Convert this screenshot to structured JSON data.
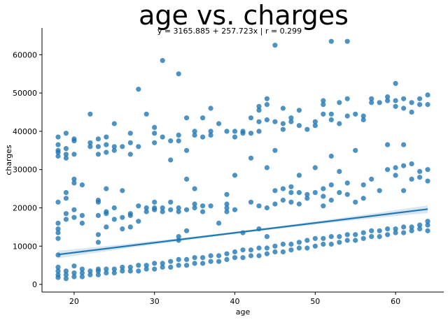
{
  "chart_data": {
    "type": "scatter",
    "title": "age vs. charges",
    "subtitle": "y = 3165.885 + 257.723x | r = 0.299",
    "xlabel": "age",
    "ylabel": "charges",
    "xlim": [
      16,
      66
    ],
    "ylim": [
      -2000,
      67000
    ],
    "x_ticks": [
      20,
      30,
      40,
      50,
      60
    ],
    "y_ticks": [
      0,
      10000,
      20000,
      30000,
      40000,
      50000,
      60000
    ],
    "grid": false,
    "point_color": "#1f77b4",
    "regression": {
      "intercept": 3165.885,
      "slope": 257.723,
      "r": 0.299,
      "x_range": [
        18,
        64
      ],
      "ci_halfwidth_at_ends": 1000,
      "ci_halfwidth_at_mean": 300
    },
    "points": [
      [
        18,
        1800
      ],
      [
        18,
        2500
      ],
      [
        18,
        3500
      ],
      [
        18,
        4500
      ],
      [
        18,
        7700
      ],
      [
        18,
        12000
      ],
      [
        18,
        13500
      ],
      [
        18,
        14500
      ],
      [
        18,
        16000
      ],
      [
        18,
        21500
      ],
      [
        18,
        33500
      ],
      [
        18,
        34500
      ],
      [
        18,
        35000
      ],
      [
        18,
        36500
      ],
      [
        18,
        38500
      ],
      [
        19,
        1500
      ],
      [
        19,
        2500
      ],
      [
        19,
        3500
      ],
      [
        19,
        17000
      ],
      [
        19,
        18500
      ],
      [
        19,
        22500
      ],
      [
        19,
        24000
      ],
      [
        19,
        33000
      ],
      [
        19,
        34000
      ],
      [
        19,
        35500
      ],
      [
        19,
        39500
      ],
      [
        20,
        2000
      ],
      [
        20,
        3000
      ],
      [
        20,
        4800
      ],
      [
        20,
        17500
      ],
      [
        20,
        19500
      ],
      [
        20,
        26500
      ],
      [
        20,
        27500
      ],
      [
        20,
        34000
      ],
      [
        20,
        37500
      ],
      [
        20,
        38000
      ],
      [
        21,
        2000
      ],
      [
        21,
        3000
      ],
      [
        21,
        4000
      ],
      [
        21,
        16000
      ],
      [
        21,
        18000
      ],
      [
        21,
        26000
      ],
      [
        22,
        2500
      ],
      [
        22,
        3500
      ],
      [
        22,
        37000
      ],
      [
        22,
        44500
      ],
      [
        22,
        36000
      ],
      [
        23,
        2500
      ],
      [
        23,
        3500
      ],
      [
        23,
        4000
      ],
      [
        23,
        11000
      ],
      [
        23,
        13000
      ],
      [
        23,
        18000
      ],
      [
        23,
        21500
      ],
      [
        23,
        22000
      ],
      [
        23,
        34000
      ],
      [
        23,
        36000
      ],
      [
        23,
        38000
      ],
      [
        24,
        3000
      ],
      [
        24,
        4000
      ],
      [
        24,
        15000
      ],
      [
        24,
        18500
      ],
      [
        24,
        19000
      ],
      [
        24,
        25000
      ],
      [
        24,
        34500
      ],
      [
        24,
        36500
      ],
      [
        24,
        38500
      ],
      [
        25,
        3000
      ],
      [
        25,
        4000
      ],
      [
        25,
        17000
      ],
      [
        25,
        20000
      ],
      [
        25,
        42000
      ],
      [
        25,
        36000
      ],
      [
        25,
        35000
      ],
      [
        26,
        3500
      ],
      [
        26,
        4500
      ],
      [
        26,
        14500
      ],
      [
        26,
        17500
      ],
      [
        26,
        24500
      ],
      [
        26,
        36000
      ],
      [
        27,
        3500
      ],
      [
        27,
        4500
      ],
      [
        27,
        15000
      ],
      [
        27,
        18500
      ],
      [
        27,
        18000
      ],
      [
        27,
        34000
      ],
      [
        27,
        37000
      ],
      [
        27,
        39500
      ],
      [
        28,
        3500
      ],
      [
        28,
        5000
      ],
      [
        28,
        16500
      ],
      [
        28,
        20500
      ],
      [
        28,
        51000
      ],
      [
        28,
        36000
      ],
      [
        29,
        4000
      ],
      [
        29,
        5000
      ],
      [
        29,
        19000
      ],
      [
        29,
        20000
      ],
      [
        29,
        44500
      ],
      [
        30,
        4000
      ],
      [
        30,
        5500
      ],
      [
        30,
        19500
      ],
      [
        30,
        20000
      ],
      [
        30,
        21500
      ],
      [
        30,
        37000
      ],
      [
        30,
        39500
      ],
      [
        30,
        41000
      ],
      [
        31,
        4500
      ],
      [
        31,
        5500
      ],
      [
        31,
        19000
      ],
      [
        31,
        20000
      ],
      [
        31,
        58500
      ],
      [
        31,
        38500
      ],
      [
        32,
        4500
      ],
      [
        32,
        6000
      ],
      [
        32,
        19500
      ],
      [
        32,
        21500
      ],
      [
        32,
        32500
      ],
      [
        32,
        37500
      ],
      [
        33,
        5000
      ],
      [
        33,
        6500
      ],
      [
        33,
        11500
      ],
      [
        33,
        12500
      ],
      [
        33,
        19000
      ],
      [
        33,
        20000
      ],
      [
        33,
        55000
      ],
      [
        33,
        37500
      ],
      [
        33,
        39000
      ],
      [
        34,
        5000
      ],
      [
        34,
        6500
      ],
      [
        34,
        14000
      ],
      [
        34,
        19500
      ],
      [
        34,
        27500
      ],
      [
        34,
        35000
      ],
      [
        34,
        43500
      ],
      [
        35,
        5500
      ],
      [
        35,
        7000
      ],
      [
        35,
        20000
      ],
      [
        35,
        25000
      ],
      [
        35,
        21000
      ],
      [
        35,
        39000
      ],
      [
        35,
        40000
      ],
      [
        36,
        5500
      ],
      [
        36,
        7000
      ],
      [
        36,
        19000
      ],
      [
        36,
        20500
      ],
      [
        36,
        38500
      ],
      [
        36,
        43500
      ],
      [
        37,
        6000
      ],
      [
        37,
        7500
      ],
      [
        37,
        20500
      ],
      [
        37,
        39000
      ],
      [
        37,
        40000
      ],
      [
        37,
        46000
      ],
      [
        38,
        6000
      ],
      [
        38,
        7500
      ],
      [
        38,
        16000
      ],
      [
        38,
        42000
      ],
      [
        39,
        6500
      ],
      [
        39,
        8000
      ],
      [
        39,
        19000
      ],
      [
        39,
        20000
      ],
      [
        39,
        23500
      ],
      [
        39,
        21000
      ],
      [
        39,
        40000
      ],
      [
        40,
        7000
      ],
      [
        40,
        8500
      ],
      [
        40,
        19500
      ],
      [
        40,
        28500
      ],
      [
        40,
        40000
      ],
      [
        40,
        38500
      ],
      [
        41,
        7000
      ],
      [
        41,
        9000
      ],
      [
        41,
        13500
      ],
      [
        41,
        39500
      ],
      [
        41,
        40000
      ],
      [
        42,
        7500
      ],
      [
        42,
        9000
      ],
      [
        42,
        21500
      ],
      [
        42,
        33000
      ],
      [
        42,
        43500
      ],
      [
        42,
        39500
      ],
      [
        43,
        7500
      ],
      [
        43,
        9500
      ],
      [
        43,
        14500
      ],
      [
        43,
        20500
      ],
      [
        43,
        40000
      ],
      [
        43,
        42500
      ],
      [
        43,
        45500
      ],
      [
        43,
        46500
      ],
      [
        44,
        8000
      ],
      [
        44,
        9500
      ],
      [
        44,
        12500
      ],
      [
        44,
        20000
      ],
      [
        44,
        30500
      ],
      [
        44,
        43000
      ],
      [
        44,
        48500
      ],
      [
        44,
        47000
      ],
      [
        45,
        8500
      ],
      [
        45,
        10000
      ],
      [
        45,
        21000
      ],
      [
        45,
        24500
      ],
      [
        45,
        35000
      ],
      [
        45,
        62500
      ],
      [
        45,
        42500
      ],
      [
        46,
        8500
      ],
      [
        46,
        10500
      ],
      [
        46,
        22000
      ],
      [
        46,
        25000
      ],
      [
        46,
        40500
      ],
      [
        46,
        46000
      ],
      [
        46,
        42000
      ],
      [
        47,
        9000
      ],
      [
        47,
        10500
      ],
      [
        47,
        21500
      ],
      [
        47,
        24000
      ],
      [
        47,
        25500
      ],
      [
        47,
        42500
      ],
      [
        47,
        43500
      ],
      [
        48,
        9500
      ],
      [
        48,
        11000
      ],
      [
        48,
        21000
      ],
      [
        48,
        24000
      ],
      [
        48,
        28500
      ],
      [
        48,
        45500
      ],
      [
        48,
        41500
      ],
      [
        49,
        9500
      ],
      [
        49,
        11500
      ],
      [
        49,
        22500
      ],
      [
        49,
        23500
      ],
      [
        49,
        40500
      ],
      [
        50,
        10000
      ],
      [
        50,
        12000
      ],
      [
        50,
        24000
      ],
      [
        50,
        30500
      ],
      [
        50,
        41500
      ],
      [
        50,
        42500
      ],
      [
        51,
        10500
      ],
      [
        51,
        12000
      ],
      [
        51,
        20500
      ],
      [
        51,
        23000
      ],
      [
        51,
        25000
      ],
      [
        51,
        44500
      ],
      [
        51,
        47000
      ],
      [
        51,
        48000
      ],
      [
        52,
        10500
      ],
      [
        52,
        12500
      ],
      [
        52,
        22000
      ],
      [
        52,
        26000
      ],
      [
        52,
        33500
      ],
      [
        52,
        63500
      ],
      [
        52,
        44500
      ],
      [
        52,
        43000
      ],
      [
        53,
        11000
      ],
      [
        53,
        12500
      ],
      [
        53,
        24000
      ],
      [
        53,
        29500
      ],
      [
        53,
        47500
      ],
      [
        53,
        42000
      ],
      [
        54,
        11500
      ],
      [
        54,
        13000
      ],
      [
        54,
        23500
      ],
      [
        54,
        26500
      ],
      [
        54,
        63500
      ],
      [
        54,
        48500
      ],
      [
        54,
        44000
      ],
      [
        55,
        11500
      ],
      [
        55,
        13000
      ],
      [
        55,
        21500
      ],
      [
        55,
        35000
      ],
      [
        55,
        44500
      ],
      [
        56,
        12000
      ],
      [
        56,
        13500
      ],
      [
        56,
        22500
      ],
      [
        56,
        26000
      ],
      [
        56,
        44000
      ],
      [
        56,
        43000
      ],
      [
        57,
        12500
      ],
      [
        57,
        14000
      ],
      [
        57,
        27500
      ],
      [
        57,
        48500
      ],
      [
        57,
        47500
      ],
      [
        58,
        12500
      ],
      [
        58,
        14000
      ],
      [
        58,
        24500
      ],
      [
        58,
        47500
      ],
      [
        59,
        13000
      ],
      [
        59,
        14500
      ],
      [
        59,
        30000
      ],
      [
        59,
        36500
      ],
      [
        59,
        49000
      ],
      [
        59,
        48000
      ],
      [
        60,
        13500
      ],
      [
        60,
        14500
      ],
      [
        60,
        28500
      ],
      [
        60,
        30500
      ],
      [
        60,
        52500
      ],
      [
        60,
        46500
      ],
      [
        60,
        48000
      ],
      [
        61,
        13500
      ],
      [
        61,
        15000
      ],
      [
        61,
        24500
      ],
      [
        61,
        31000
      ],
      [
        61,
        36500
      ],
      [
        61,
        48500
      ],
      [
        61,
        46000
      ],
      [
        62,
        14000
      ],
      [
        62,
        15000
      ],
      [
        62,
        27500
      ],
      [
        62,
        31500
      ],
      [
        62,
        45000
      ],
      [
        62,
        47500
      ],
      [
        63,
        14500
      ],
      [
        63,
        15500
      ],
      [
        63,
        28000
      ],
      [
        63,
        29500
      ],
      [
        63,
        48500
      ],
      [
        63,
        47000
      ],
      [
        64,
        14000
      ],
      [
        64,
        15500
      ],
      [
        64,
        16500
      ],
      [
        64,
        27000
      ],
      [
        64,
        30000
      ],
      [
        64,
        47000
      ],
      [
        64,
        49500
      ]
    ]
  }
}
